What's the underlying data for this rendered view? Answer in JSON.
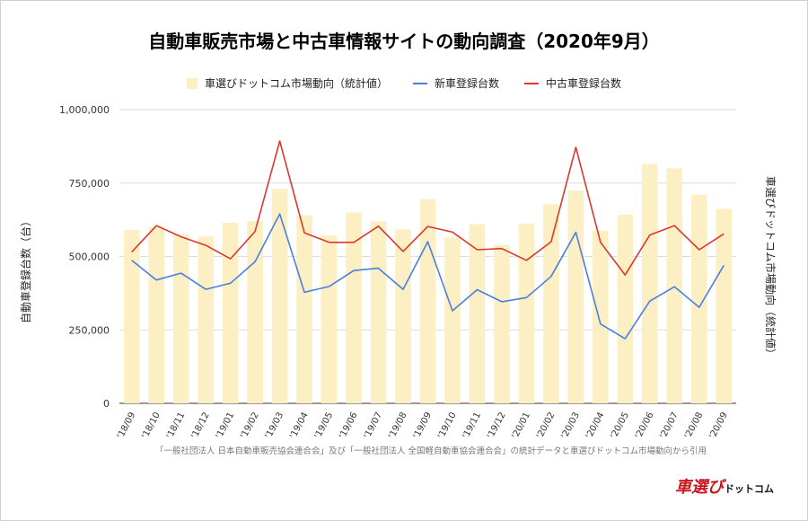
{
  "chart_data": {
    "type": "bar",
    "title": "自動車販売市場と中古車情報サイトの動向調査（2020年9月）",
    "categories": [
      "'18/09",
      "'18/10",
      "'18/11",
      "'18/12",
      "'19/01",
      "'19/02",
      "'19/03",
      "'19/04",
      "'19/05",
      "'19/06",
      "'19/07",
      "'19/08",
      "'19/09",
      "'19/10",
      "'19/11",
      "'19/12",
      "'20/01",
      "'20/02",
      "'20/03",
      "'20/04",
      "'20/05",
      "'20/06",
      "'20/07",
      "'20/08",
      "'20/09"
    ],
    "series": [
      {
        "name": "車選びドットコム市場動向（統計値）",
        "type": "bar",
        "axis": "right",
        "values": [
          590000,
          600000,
          575000,
          568000,
          615000,
          620000,
          730000,
          640000,
          572000,
          650000,
          620000,
          592000,
          695000,
          565000,
          610000,
          540000,
          612000,
          678000,
          725000,
          588000,
          642000,
          815000,
          800000,
          710000,
          662000
        ]
      },
      {
        "name": "新車登録台数",
        "type": "line",
        "axis": "left",
        "values": [
          487000,
          420000,
          443000,
          388000,
          409000,
          482000,
          645000,
          378000,
          398000,
          452000,
          460000,
          388000,
          550000,
          315000,
          387000,
          346000,
          360000,
          432000,
          582000,
          270000,
          220000,
          348000,
          397000,
          327000,
          470000
        ]
      },
      {
        "name": "中古車登録台数",
        "type": "line",
        "axis": "left",
        "values": [
          515000,
          605000,
          567000,
          538000,
          492000,
          585000,
          893000,
          580000,
          548000,
          548000,
          603000,
          517000,
          602000,
          583000,
          523000,
          527000,
          487000,
          550000,
          872000,
          548000,
          437000,
          573000,
          605000,
          523000,
          577000
        ]
      }
    ],
    "ylabel": "自動車登録台数（台）",
    "ylabel_right": "車選びドットコム市場動向（統計値）",
    "ylim": [
      0,
      1000000
    ],
    "yticks": [
      "0",
      "250,000",
      "500,000",
      "750,000",
      "1,000,000"
    ],
    "grid": true,
    "legend": "top-center",
    "colors": {
      "bar": "#fcefc3",
      "new_car": "#4a7fe0",
      "used_car": "#d9392e"
    }
  },
  "source_note": "「一般社団法人 日本自動車販売協会連合会」及び「一般社団法人 全国軽自動車協会連合会」の統計データと車選びドットコム市場動向から引用",
  "logo": {
    "main": "車選び",
    "sub": "ドットコム",
    "main_color": "#c9151e",
    "sub_color": "#111111"
  }
}
